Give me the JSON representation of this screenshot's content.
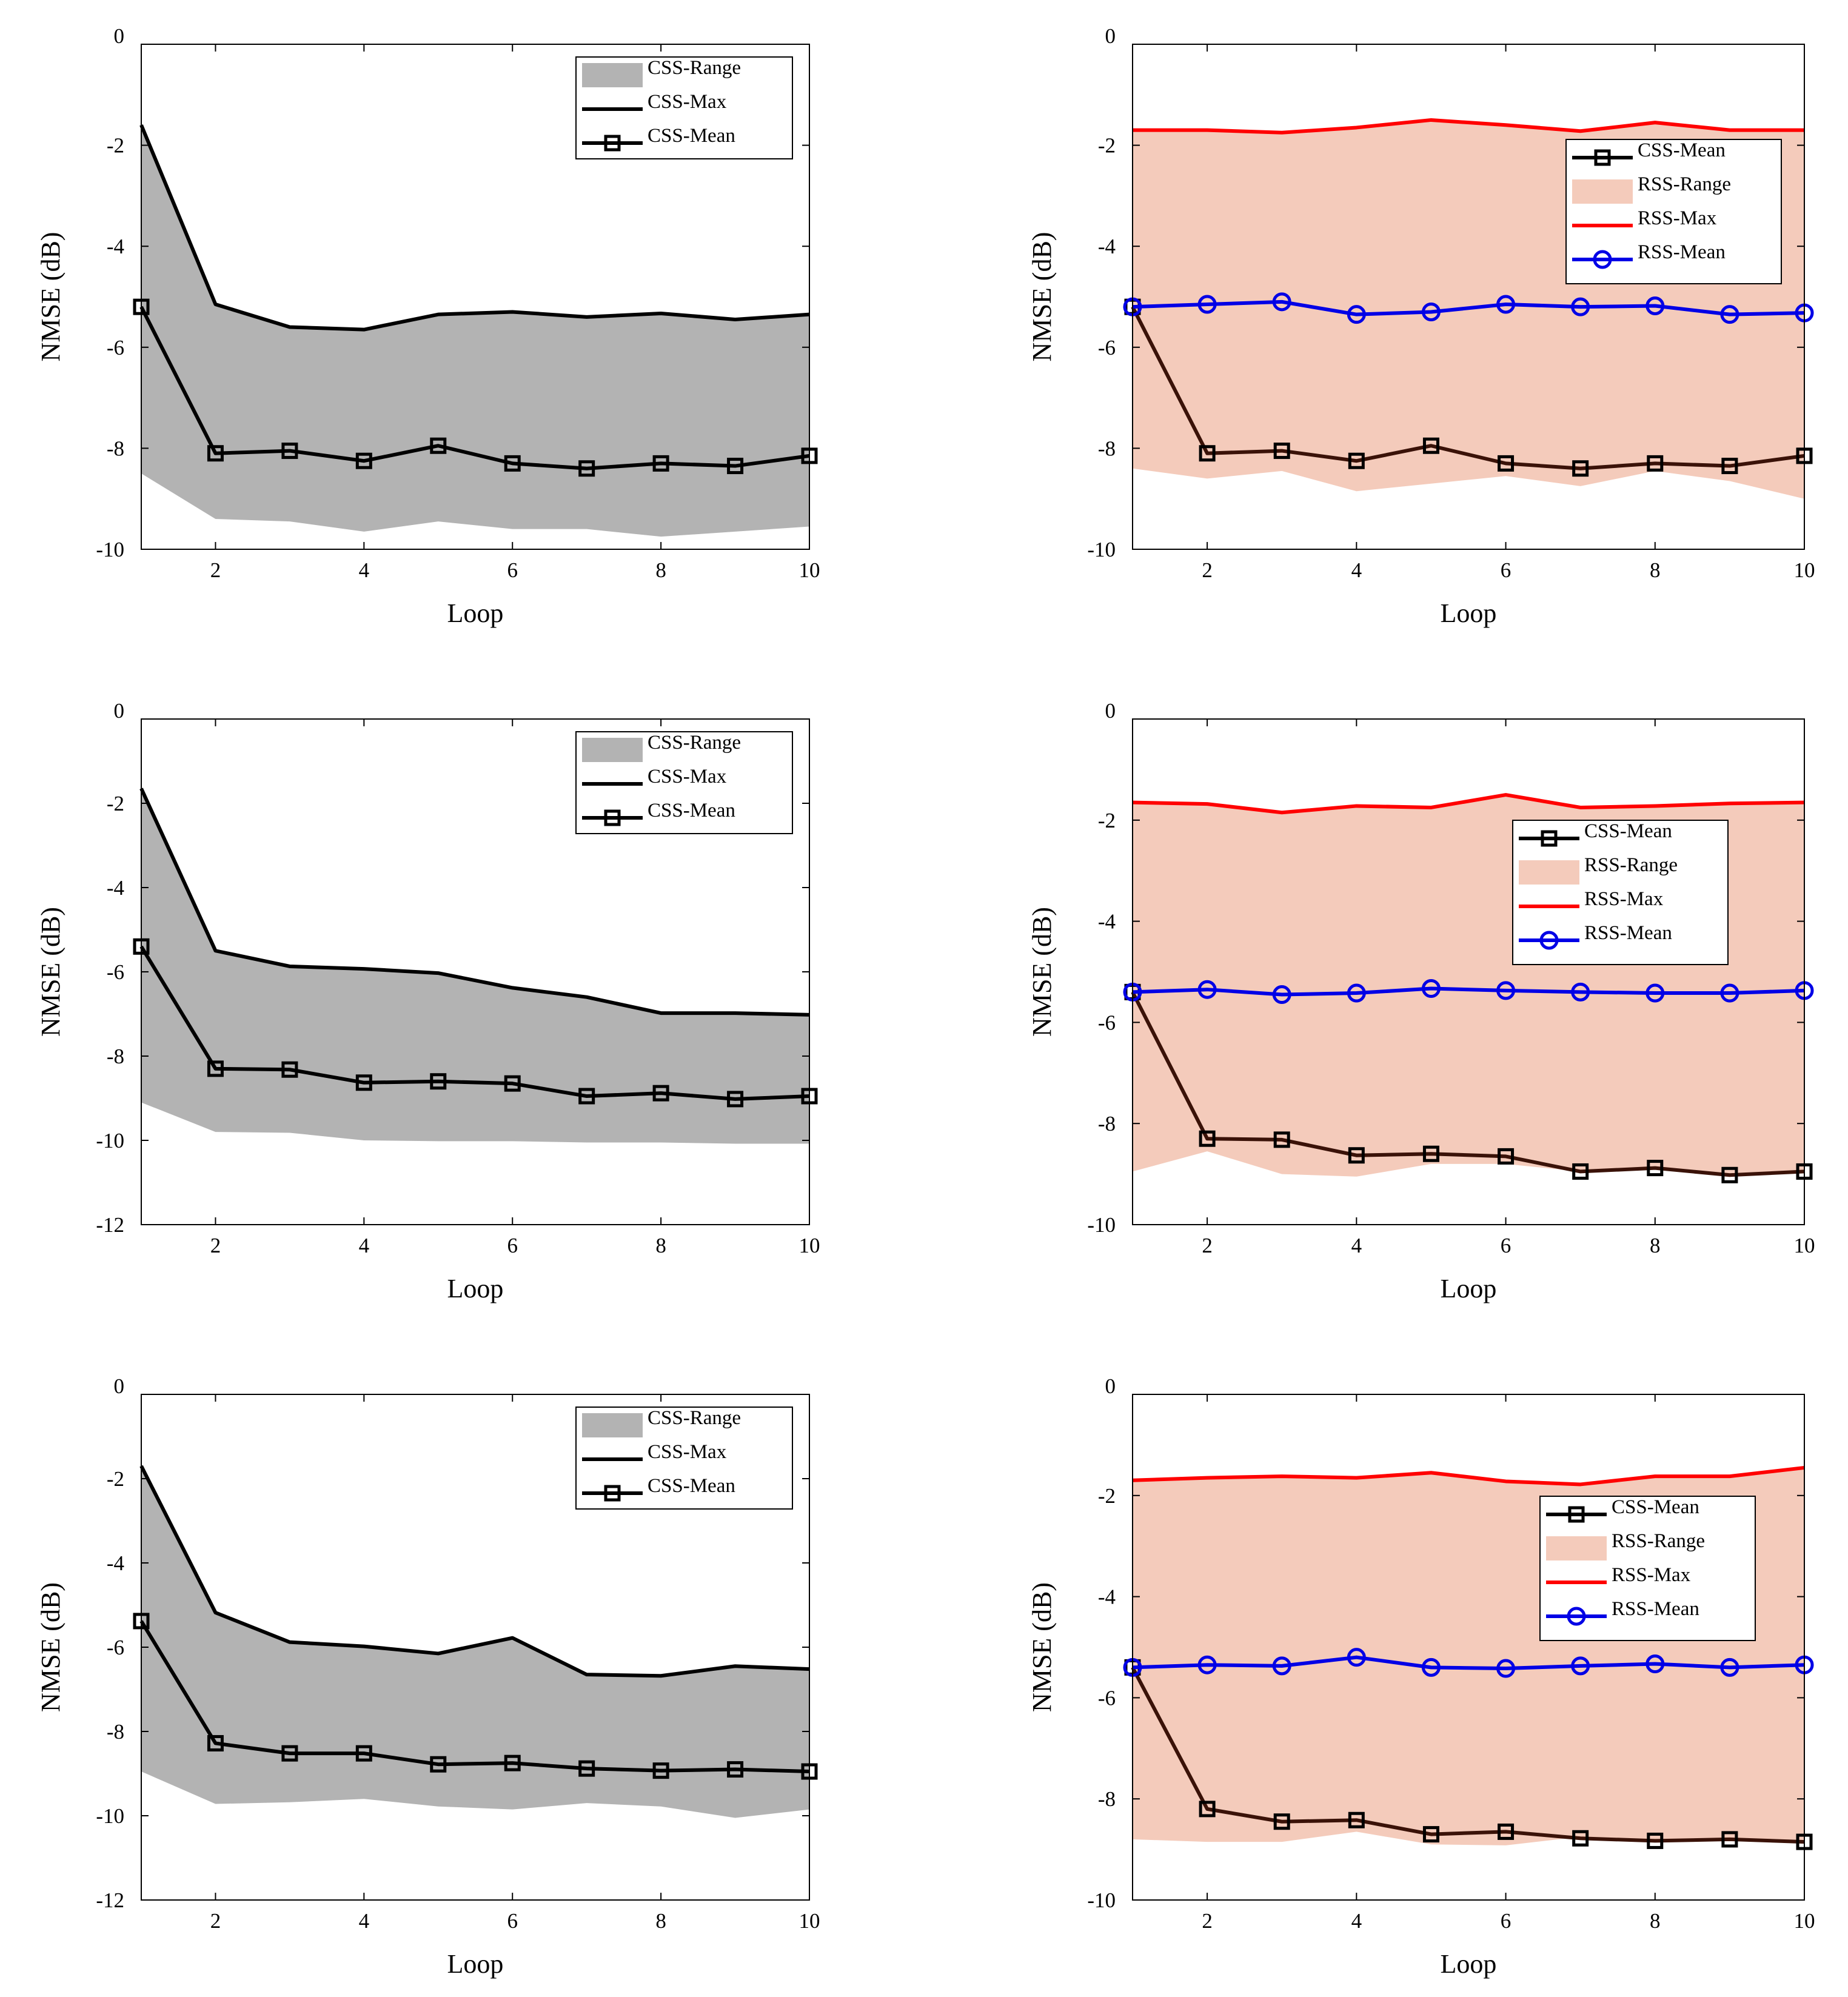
{
  "colors": {
    "css_range": "#b3b3b3",
    "rss_range": "#f4cbbb",
    "css_line": "#000000",
    "css_mean_rss_panel": "#3a1208",
    "rss_max": "#ff0000",
    "rss_mean": "#0000e6"
  },
  "chart_data": [
    {
      "type": "area",
      "panel": "top-left",
      "xlabel": "Loop",
      "ylabel": "NMSE (dB)",
      "xlim": [
        1,
        10
      ],
      "ylim": [
        -10,
        0
      ],
      "xticks": [
        2,
        4,
        6,
        8,
        10
      ],
      "yticks": [
        0,
        -2,
        -4,
        -6,
        -8,
        -10
      ],
      "legend_position": "top-right",
      "x": [
        1,
        2,
        3,
        4,
        5,
        6,
        7,
        8,
        9,
        10
      ],
      "series": [
        {
          "name": "CSS-Range",
          "kind": "band",
          "lower": [
            -8.5,
            -9.4,
            -9.45,
            -9.65,
            -9.45,
            -9.6,
            -9.6,
            -9.75,
            -9.65,
            -9.55
          ],
          "upper": [
            -1.6,
            -5.15,
            -5.6,
            -5.65,
            -5.35,
            -5.3,
            -5.4,
            -5.33,
            -5.45,
            -5.35
          ]
        },
        {
          "name": "CSS-Max",
          "kind": "line",
          "values": [
            -1.6,
            -5.15,
            -5.6,
            -5.65,
            -5.35,
            -5.3,
            -5.4,
            -5.33,
            -5.45,
            -5.35
          ]
        },
        {
          "name": "CSS-Mean",
          "kind": "line-square",
          "values": [
            -5.2,
            -8.1,
            -8.05,
            -8.25,
            -7.95,
            -8.3,
            -8.4,
            -8.3,
            -8.35,
            -8.15
          ]
        }
      ],
      "legend": [
        "CSS-Range",
        "CSS-Max",
        "CSS-Mean"
      ]
    },
    {
      "type": "area",
      "panel": "top-right",
      "xlabel": "Loop",
      "ylabel": "NMSE (dB)",
      "xlim": [
        1,
        10
      ],
      "ylim": [
        -10,
        0
      ],
      "xticks": [
        2,
        4,
        6,
        8,
        10
      ],
      "yticks": [
        0,
        -2,
        -4,
        -6,
        -8,
        -10
      ],
      "legend_position": "upper-right",
      "x": [
        1,
        2,
        3,
        4,
        5,
        6,
        7,
        8,
        9,
        10
      ],
      "series": [
        {
          "name": "CSS-Mean",
          "kind": "line-square",
          "values": [
            -5.2,
            -8.1,
            -8.05,
            -8.25,
            -7.95,
            -8.3,
            -8.4,
            -8.3,
            -8.35,
            -8.15
          ]
        },
        {
          "name": "RSS-Range",
          "kind": "band",
          "lower": [
            -8.4,
            -8.6,
            -8.45,
            -8.85,
            -8.7,
            -8.55,
            -8.75,
            -8.45,
            -8.65,
            -9.0
          ],
          "upper": [
            -1.7,
            -1.7,
            -1.75,
            -1.65,
            -1.5,
            -1.6,
            -1.72,
            -1.55,
            -1.7,
            -1.7
          ]
        },
        {
          "name": "RSS-Max",
          "kind": "line",
          "values": [
            -1.7,
            -1.7,
            -1.75,
            -1.65,
            -1.5,
            -1.6,
            -1.72,
            -1.55,
            -1.7,
            -1.7
          ]
        },
        {
          "name": "RSS-Mean",
          "kind": "line-circle",
          "values": [
            -5.2,
            -5.15,
            -5.1,
            -5.35,
            -5.3,
            -5.15,
            -5.2,
            -5.18,
            -5.35,
            -5.32
          ]
        }
      ],
      "legend": [
        "CSS-Mean",
        "RSS-Range",
        "RSS-Max",
        "RSS-Mean"
      ]
    },
    {
      "type": "area",
      "panel": "middle-left",
      "xlabel": "Loop",
      "ylabel": "NMSE (dB)",
      "xlim": [
        1,
        10
      ],
      "ylim": [
        -12,
        0
      ],
      "xticks": [
        2,
        4,
        6,
        8,
        10
      ],
      "yticks": [
        0,
        -2,
        -4,
        -6,
        -8,
        -10,
        -12
      ],
      "legend_position": "top-right",
      "x": [
        1,
        2,
        3,
        4,
        5,
        6,
        7,
        8,
        9,
        10
      ],
      "series": [
        {
          "name": "CSS-Range",
          "kind": "band",
          "lower": [
            -9.1,
            -9.8,
            -9.82,
            -10.0,
            -10.02,
            -10.02,
            -10.05,
            -10.05,
            -10.08,
            -10.08
          ],
          "upper": [
            -1.65,
            -5.5,
            -5.87,
            -5.93,
            -6.03,
            -6.38,
            -6.6,
            -6.98,
            -6.98,
            -7.02
          ]
        },
        {
          "name": "CSS-Max",
          "kind": "line",
          "values": [
            -1.65,
            -5.5,
            -5.87,
            -5.93,
            -6.03,
            -6.38,
            -6.6,
            -6.98,
            -6.98,
            -7.02
          ]
        },
        {
          "name": "CSS-Mean",
          "kind": "line-square",
          "values": [
            -5.4,
            -8.3,
            -8.32,
            -8.63,
            -8.6,
            -8.65,
            -8.95,
            -8.88,
            -9.02,
            -8.95
          ]
        }
      ],
      "legend": [
        "CSS-Range",
        "CSS-Max",
        "CSS-Mean"
      ]
    },
    {
      "type": "area",
      "panel": "middle-right",
      "xlabel": "Loop",
      "ylabel": "NMSE (dB)",
      "xlim": [
        1,
        10
      ],
      "ylim": [
        -10,
        0
      ],
      "xticks": [
        2,
        4,
        6,
        8,
        10
      ],
      "yticks": [
        0,
        -2,
        -4,
        -6,
        -8,
        -10
      ],
      "legend_position": "upper-right",
      "x": [
        1,
        2,
        3,
        4,
        5,
        6,
        7,
        8,
        9,
        10
      ],
      "series": [
        {
          "name": "CSS-Mean",
          "kind": "line-square",
          "values": [
            -5.4,
            -8.3,
            -8.32,
            -8.63,
            -8.6,
            -8.65,
            -8.95,
            -8.88,
            -9.02,
            -8.95
          ]
        },
        {
          "name": "RSS-Range",
          "kind": "band",
          "lower": [
            -8.95,
            -8.55,
            -9.0,
            -9.05,
            -8.8,
            -8.8,
            -8.95,
            -8.85,
            -9.0,
            -8.95
          ],
          "upper": [
            -1.65,
            -1.68,
            -1.85,
            -1.72,
            -1.75,
            -1.5,
            -1.75,
            -1.72,
            -1.67,
            -1.65
          ]
        },
        {
          "name": "RSS-Max",
          "kind": "line",
          "values": [
            -1.65,
            -1.68,
            -1.85,
            -1.72,
            -1.75,
            -1.5,
            -1.75,
            -1.72,
            -1.67,
            -1.65
          ]
        },
        {
          "name": "RSS-Mean",
          "kind": "line-circle",
          "values": [
            -5.4,
            -5.35,
            -5.45,
            -5.42,
            -5.33,
            -5.37,
            -5.4,
            -5.42,
            -5.42,
            -5.37
          ]
        }
      ],
      "legend": [
        "CSS-Mean",
        "RSS-Range",
        "RSS-Max",
        "RSS-Mean"
      ]
    },
    {
      "type": "area",
      "panel": "bottom-left",
      "xlabel": "Loop",
      "ylabel": "NMSE (dB)",
      "xlim": [
        1,
        10
      ],
      "ylim": [
        -12,
        0
      ],
      "xticks": [
        2,
        4,
        6,
        8,
        10
      ],
      "yticks": [
        0,
        -2,
        -4,
        -6,
        -8,
        -10,
        -12
      ],
      "legend_position": "top-right",
      "x": [
        1,
        2,
        3,
        4,
        5,
        6,
        7,
        8,
        9,
        10
      ],
      "series": [
        {
          "name": "CSS-Range",
          "kind": "band",
          "lower": [
            -8.95,
            -9.72,
            -9.68,
            -9.6,
            -9.78,
            -9.85,
            -9.7,
            -9.78,
            -10.05,
            -9.85
          ],
          "upper": [
            -1.7,
            -5.18,
            -5.88,
            -5.98,
            -6.15,
            -5.78,
            -6.65,
            -6.68,
            -6.45,
            -6.52
          ]
        },
        {
          "name": "CSS-Max",
          "kind": "line",
          "values": [
            -1.7,
            -5.18,
            -5.88,
            -5.98,
            -6.15,
            -5.78,
            -6.65,
            -6.68,
            -6.45,
            -6.52
          ]
        },
        {
          "name": "CSS-Mean",
          "kind": "line-square",
          "values": [
            -5.38,
            -8.28,
            -8.52,
            -8.52,
            -8.78,
            -8.75,
            -8.88,
            -8.93,
            -8.9,
            -8.95
          ]
        }
      ],
      "legend": [
        "CSS-Range",
        "CSS-Max",
        "CSS-Mean"
      ]
    },
    {
      "type": "area",
      "panel": "bottom-right",
      "xlabel": "Loop",
      "ylabel": "NMSE (dB)",
      "xlim": [
        1,
        10
      ],
      "ylim": [
        -10,
        0
      ],
      "xticks": [
        2,
        4,
        6,
        8,
        10
      ],
      "yticks": [
        0,
        -2,
        -4,
        -6,
        -8,
        -10
      ],
      "legend_position": "upper-right",
      "x": [
        1,
        2,
        3,
        4,
        5,
        6,
        7,
        8,
        9,
        10
      ],
      "series": [
        {
          "name": "CSS-Mean",
          "kind": "line-square",
          "values": [
            -5.4,
            -8.2,
            -8.45,
            -8.42,
            -8.7,
            -8.65,
            -8.78,
            -8.83,
            -8.8,
            -8.85
          ]
        },
        {
          "name": "RSS-Range",
          "kind": "band",
          "lower": [
            -8.8,
            -8.85,
            -8.85,
            -8.65,
            -8.9,
            -8.92,
            -8.75,
            -8.85,
            -8.8,
            -8.88
          ],
          "upper": [
            -1.7,
            -1.65,
            -1.62,
            -1.65,
            -1.55,
            -1.72,
            -1.78,
            -1.62,
            -1.62,
            -1.45
          ]
        },
        {
          "name": "RSS-Max",
          "kind": "line",
          "values": [
            -1.7,
            -1.65,
            -1.62,
            -1.65,
            -1.55,
            -1.72,
            -1.78,
            -1.62,
            -1.62,
            -1.45
          ]
        },
        {
          "name": "RSS-Mean",
          "kind": "line-circle",
          "values": [
            -5.4,
            -5.35,
            -5.37,
            -5.2,
            -5.4,
            -5.42,
            -5.37,
            -5.33,
            -5.4,
            -5.35
          ]
        }
      ],
      "legend": [
        "CSS-Mean",
        "RSS-Range",
        "RSS-Max",
        "RSS-Mean"
      ]
    }
  ]
}
